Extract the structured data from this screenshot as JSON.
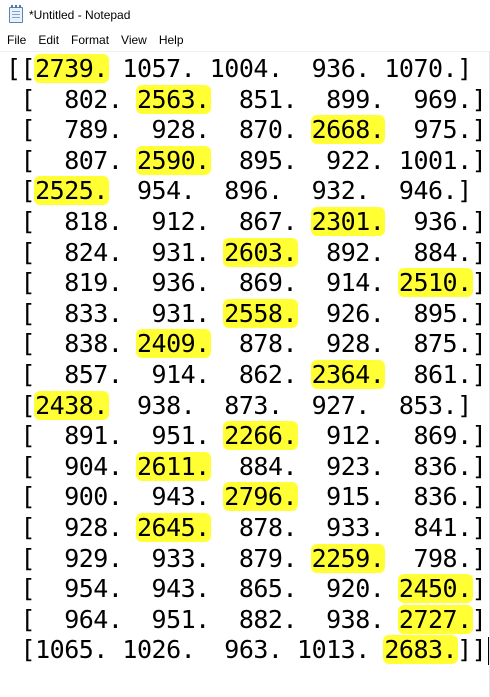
{
  "window": {
    "title": "*Untitled - Notepad",
    "icon": "notepad-icon"
  },
  "menu": {
    "items": [
      "File",
      "Edit",
      "Format",
      "View",
      "Help"
    ]
  },
  "highlight_color": "#ffff33",
  "editor": {
    "lines": [
      [
        {
          "t": "[["
        },
        {
          "t": "2739.",
          "h": true
        },
        {
          "t": " 1057. 1004.  936. 1070.]"
        }
      ],
      [
        {
          "t": " [  802. "
        },
        {
          "t": "2563.",
          "h": true
        },
        {
          "t": "  851.  899.  969.]"
        }
      ],
      [
        {
          "t": " [  789.  928.  870. "
        },
        {
          "t": "2668.",
          "h": true
        },
        {
          "t": "  975.]"
        }
      ],
      [
        {
          "t": " [  807. "
        },
        {
          "t": "2590.",
          "h": true
        },
        {
          "t": "  895.  922. 1001.]"
        }
      ],
      [
        {
          "t": " ["
        },
        {
          "t": "2525.",
          "h": true
        },
        {
          "t": "  954.  896.  932.  946.]"
        }
      ],
      [
        {
          "t": " [  818.  912.  867. "
        },
        {
          "t": "2301.",
          "h": true
        },
        {
          "t": "  936.]"
        }
      ],
      [
        {
          "t": " [  824.  931. "
        },
        {
          "t": "2603.",
          "h": true
        },
        {
          "t": "  892.  884.]"
        }
      ],
      [
        {
          "t": " [  819.  936.  869.  914. "
        },
        {
          "t": "2510.",
          "h": true
        },
        {
          "t": "]"
        }
      ],
      [
        {
          "t": " [  833.  931. "
        },
        {
          "t": "2558.",
          "h": true
        },
        {
          "t": "  926.  895.]"
        }
      ],
      [
        {
          "t": " [  838. "
        },
        {
          "t": "2409.",
          "h": true
        },
        {
          "t": "  878.  928.  875.]"
        }
      ],
      [
        {
          "t": " [  857.  914.  862. "
        },
        {
          "t": "2364.",
          "h": true
        },
        {
          "t": "  861.]"
        }
      ],
      [
        {
          "t": " ["
        },
        {
          "t": "2438.",
          "h": true
        },
        {
          "t": "  938.  873.  927.  853.]"
        }
      ],
      [
        {
          "t": " [  891.  951. "
        },
        {
          "t": "2266.",
          "h": true
        },
        {
          "t": "  912.  869.]"
        }
      ],
      [
        {
          "t": " [  904. "
        },
        {
          "t": "2611.",
          "h": true
        },
        {
          "t": "  884.  923.  836.]"
        }
      ],
      [
        {
          "t": " [  900.  943. "
        },
        {
          "t": "2796.",
          "h": true
        },
        {
          "t": "  915.  836.]"
        }
      ],
      [
        {
          "t": " [  928. "
        },
        {
          "t": "2645.",
          "h": true
        },
        {
          "t": "  878.  933.  841.]"
        }
      ],
      [
        {
          "t": " [  929.  933.  879. "
        },
        {
          "t": "2259.",
          "h": true
        },
        {
          "t": "  798.]"
        }
      ],
      [
        {
          "t": " [  954.  943.  865.  920. "
        },
        {
          "t": "2450.",
          "h": true
        },
        {
          "t": "]"
        }
      ],
      [
        {
          "t": " [  964.  951.  882.  938. "
        },
        {
          "t": "2727.",
          "h": true
        },
        {
          "t": "]"
        }
      ],
      [
        {
          "t": " [1065. 1026.  963. 1013. "
        },
        {
          "t": "2683.",
          "h": true
        },
        {
          "t": "]]"
        }
      ]
    ]
  }
}
